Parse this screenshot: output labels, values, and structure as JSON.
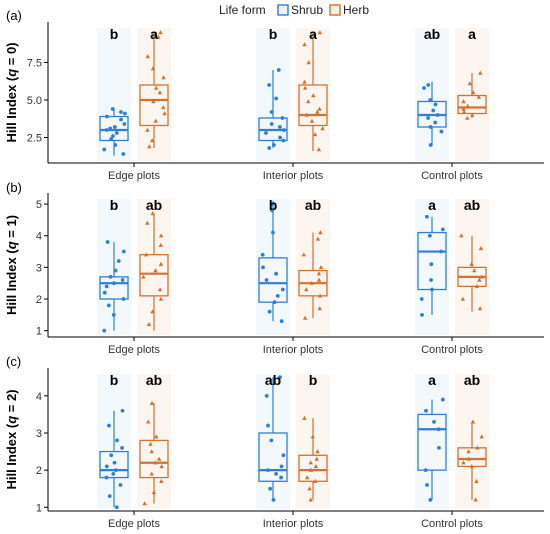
{
  "legend": {
    "title": "Life form",
    "items": [
      {
        "name": "Shrub",
        "color": "#2e7fd6"
      },
      {
        "name": "Herb",
        "color": "#d2722e"
      }
    ]
  },
  "chart_data": [
    {
      "type": "box",
      "panel_label": "(a)",
      "ylabel_main": "Hill Index (",
      "ylabel_q": "q",
      "ylabel_tail": " = 0)",
      "ylim": [
        0.8,
        10.2
      ],
      "yticks": [
        2.5,
        5.0,
        7.5
      ],
      "ytick_labels": [
        "2.5",
        "5.0",
        "7.5"
      ],
      "categories": [
        "Edge plots",
        "Interior plots",
        "Control plots"
      ],
      "letters": [
        [
          "b",
          "a"
        ],
        [
          "b",
          "a"
        ],
        [
          "ab",
          "a"
        ]
      ],
      "series": [
        {
          "name": "Shrub",
          "boxes": [
            {
              "min": 1.3,
              "q1": 2.3,
              "median": 3.0,
              "q3": 3.9,
              "max": 4.5,
              "points": [
                1.4,
                1.7,
                2.0,
                2.4,
                2.6,
                2.8,
                3.0,
                3.1,
                3.2,
                3.4,
                3.7,
                3.9,
                4.1,
                4.2,
                4.4
              ]
            },
            {
              "min": 1.8,
              "q1": 2.3,
              "median": 3.0,
              "q3": 3.8,
              "max": 7.0,
              "points": [
                1.8,
                2.0,
                2.3,
                2.5,
                2.8,
                3.0,
                3.2,
                3.4,
                3.8,
                4.2,
                5.1,
                6.0,
                7.0
              ]
            },
            {
              "min": 2.0,
              "q1": 3.2,
              "median": 4.0,
              "q3": 4.9,
              "max": 6.2,
              "points": [
                2.0,
                2.9,
                3.2,
                3.5,
                3.8,
                4.0,
                4.3,
                4.7,
                5.0,
                5.8,
                6.0
              ]
            }
          ]
        },
        {
          "name": "Herb",
          "boxes": [
            {
              "min": 1.8,
              "q1": 3.3,
              "median": 5.0,
              "q3": 6.0,
              "max": 9.5,
              "points": [
                1.9,
                2.3,
                3.0,
                3.6,
                4.1,
                4.5,
                4.9,
                5.5,
                5.8,
                6.5,
                7.1,
                7.9,
                9.2,
                9.5
              ]
            },
            {
              "min": 1.6,
              "q1": 3.3,
              "median": 4.0,
              "q3": 6.0,
              "max": 9.5,
              "points": [
                1.7,
                2.7,
                3.1,
                3.6,
                4.0,
                4.2,
                4.4,
                4.9,
                5.3,
                5.8,
                6.2,
                7.5,
                8.7,
                9.5
              ]
            },
            {
              "min": 3.8,
              "q1": 4.1,
              "median": 4.5,
              "q3": 5.3,
              "max": 6.8,
              "points": [
                3.8,
                4.0,
                4.2,
                4.4,
                4.6,
                4.9,
                5.2,
                5.5,
                6.1,
                6.8
              ]
            }
          ]
        }
      ]
    },
    {
      "type": "box",
      "panel_label": "(b)",
      "ylabel_main": "Hill Index (",
      "ylabel_q": "q",
      "ylabel_tail": " = 1)",
      "ylim": [
        0.8,
        5.35
      ],
      "yticks": [
        1,
        2,
        3,
        4,
        5
      ],
      "ytick_labels": [
        "1",
        "2",
        "3",
        "4",
        "5"
      ],
      "categories": [
        "Edge plots",
        "Interior plots",
        "Control plots"
      ],
      "letters": [
        [
          "b",
          "ab"
        ],
        [
          "b",
          "ab"
        ],
        [
          "a",
          "ab"
        ]
      ],
      "series": [
        {
          "name": "Shrub",
          "boxes": [
            {
              "min": 1.0,
              "q1": 2.0,
              "median": 2.5,
              "q3": 2.7,
              "max": 3.8,
              "points": [
                1.0,
                1.5,
                1.8,
                2.0,
                2.2,
                2.4,
                2.5,
                2.6,
                2.7,
                2.9,
                3.2,
                3.5,
                3.8
              ]
            },
            {
              "min": 1.3,
              "q1": 1.9,
              "median": 2.5,
              "q3": 3.3,
              "max": 5.1,
              "points": [
                1.3,
                1.6,
                1.9,
                2.1,
                2.3,
                2.6,
                2.8,
                3.0,
                3.4,
                4.1,
                4.8,
                5.0
              ]
            },
            {
              "min": 1.5,
              "q1": 2.3,
              "median": 3.5,
              "q3": 4.1,
              "max": 4.6,
              "points": [
                1.5,
                2.0,
                2.3,
                2.6,
                3.1,
                3.5,
                4.0,
                4.2,
                4.6
              ]
            }
          ]
        },
        {
          "name": "Herb",
          "boxes": [
            {
              "min": 1.0,
              "q1": 2.1,
              "median": 2.8,
              "q3": 3.4,
              "max": 4.7,
              "points": [
                1.2,
                1.6,
                2.0,
                2.3,
                2.7,
                2.9,
                3.1,
                3.4,
                3.7,
                4.0,
                4.4,
                4.7
              ]
            },
            {
              "min": 1.4,
              "q1": 2.1,
              "median": 2.5,
              "q3": 2.9,
              "max": 4.1,
              "points": [
                1.4,
                1.7,
                2.1,
                2.3,
                2.5,
                2.6,
                2.8,
                3.0,
                3.4,
                3.9,
                4.1
              ]
            },
            {
              "min": 1.6,
              "q1": 2.4,
              "median": 2.7,
              "q3": 3.0,
              "max": 4.0,
              "points": [
                1.7,
                2.0,
                2.4,
                2.6,
                2.7,
                2.9,
                3.1,
                3.6,
                4.0
              ]
            }
          ]
        }
      ]
    },
    {
      "type": "box",
      "panel_label": "(c)",
      "ylabel_main": "Hill Index (",
      "ylabel_q": "q",
      "ylabel_tail": " = 2)",
      "ylim": [
        0.9,
        4.75
      ],
      "yticks": [
        1,
        2,
        3,
        4
      ],
      "ytick_labels": [
        "1",
        "2",
        "3",
        "4"
      ],
      "categories": [
        "Edge plots",
        "Interior plots",
        "Control plots"
      ],
      "letters": [
        [
          "b",
          "ab"
        ],
        [
          "ab",
          "b"
        ],
        [
          "a",
          "ab"
        ]
      ],
      "series": [
        {
          "name": "Shrub",
          "boxes": [
            {
              "min": 1.0,
              "q1": 1.8,
              "median": 2.0,
              "q3": 2.5,
              "max": 3.6,
              "points": [
                1.0,
                1.3,
                1.6,
                1.8,
                1.9,
                2.0,
                2.1,
                2.2,
                2.4,
                2.6,
                2.8,
                3.2,
                3.6
              ]
            },
            {
              "min": 1.2,
              "q1": 1.7,
              "median": 2.0,
              "q3": 3.0,
              "max": 4.5,
              "points": [
                1.2,
                1.5,
                1.8,
                1.9,
                2.0,
                2.1,
                2.4,
                2.8,
                3.2,
                4.0,
                4.5
              ]
            },
            {
              "min": 1.2,
              "q1": 2.0,
              "median": 3.1,
              "q3": 3.5,
              "max": 3.9,
              "points": [
                1.2,
                1.6,
                2.0,
                2.6,
                3.1,
                3.3,
                3.6,
                3.9
              ]
            }
          ]
        },
        {
          "name": "Herb",
          "boxes": [
            {
              "min": 1.1,
              "q1": 1.8,
              "median": 2.2,
              "q3": 2.8,
              "max": 3.8,
              "points": [
                1.1,
                1.4,
                1.7,
                1.9,
                2.1,
                2.2,
                2.3,
                2.5,
                2.7,
                2.9,
                3.3,
                3.8
              ]
            },
            {
              "min": 1.2,
              "q1": 1.7,
              "median": 2.0,
              "q3": 2.4,
              "max": 3.4,
              "points": [
                1.2,
                1.5,
                1.7,
                1.8,
                2.0,
                2.1,
                2.2,
                2.3,
                2.5,
                2.9,
                3.4
              ]
            },
            {
              "min": 1.2,
              "q1": 2.1,
              "median": 2.3,
              "q3": 2.6,
              "max": 3.3,
              "points": [
                1.2,
                1.7,
                2.1,
                2.2,
                2.3,
                2.5,
                2.6,
                2.9,
                3.3
              ]
            }
          ]
        }
      ]
    }
  ]
}
